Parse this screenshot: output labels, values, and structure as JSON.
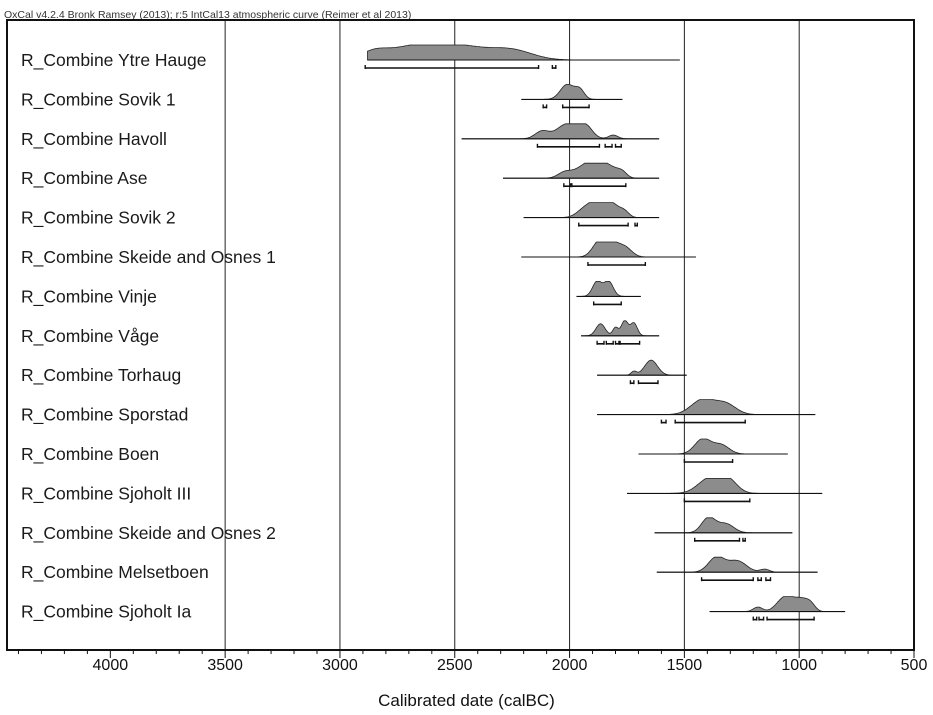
{
  "header": "OxCal v4.2.4 Bronk Ramsey (2013); r:5 IntCal13 atmospheric curve (Reimer et al 2013)",
  "chart_data": {
    "type": "other",
    "subtype": "radiocarbon calibration plot (multi-plot of calibrated date distributions)",
    "xlabel": "Calibrated date (calBC)",
    "xlim": [
      4450,
      500
    ],
    "x_direction": "reversed",
    "xticks": [
      4000,
      3500,
      3000,
      2500,
      2000,
      1500,
      1000,
      500
    ],
    "xtick_labels": [
      "4000",
      "3500",
      "3000",
      "2500",
      "2000",
      "1500",
      "1000",
      "500"
    ],
    "vertical_gridlines": [
      3500,
      3000,
      2500,
      2000,
      1500,
      1000
    ],
    "distribution_color": "#8c8c8c",
    "series": [
      {
        "name": "R_Combine Ytre Hauge",
        "range": [
          2880,
          1520
        ],
        "peaks": [
          [
            2850,
            60,
            0.55
          ],
          [
            2700,
            90,
            0.65
          ],
          [
            2500,
            130,
            1.0
          ],
          [
            2250,
            90,
            0.6
          ]
        ],
        "hpd": [
          [
            2890,
            2135
          ],
          [
            2075,
            2060
          ]
        ]
      },
      {
        "name": "R_Combine Sovik 1",
        "range": [
          2210,
          1770
        ],
        "peaks": [
          [
            2010,
            30,
            1.0
          ],
          [
            1955,
            20,
            0.6
          ]
        ],
        "hpd": [
          [
            2115,
            2100
          ],
          [
            2030,
            1915
          ]
        ]
      },
      {
        "name": "R_Combine Havoll",
        "range": [
          2470,
          1610
        ],
        "peaks": [
          [
            2120,
            30,
            0.5
          ],
          [
            2010,
            45,
            1.0
          ],
          [
            1930,
            30,
            0.8
          ],
          [
            1810,
            20,
            0.25
          ]
        ],
        "hpd": [
          [
            2140,
            1870
          ],
          [
            1845,
            1815
          ],
          [
            1800,
            1775
          ]
        ]
      },
      {
        "name": "R_Combine Ase",
        "range": [
          2290,
          1610
        ],
        "peaks": [
          [
            2020,
            30,
            0.4
          ],
          [
            1935,
            40,
            0.8
          ],
          [
            1880,
            30,
            1.0
          ],
          [
            1820,
            35,
            0.7
          ],
          [
            1770,
            20,
            0.3
          ]
        ],
        "hpd": [
          [
            2025,
            1995
          ],
          [
            1990,
            1755
          ]
        ]
      },
      {
        "name": "R_Combine Sovik 2",
        "range": [
          2200,
          1610
        ],
        "peaks": [
          [
            1930,
            35,
            0.6
          ],
          [
            1870,
            35,
            1.0
          ],
          [
            1810,
            30,
            0.75
          ],
          [
            1760,
            20,
            0.35
          ]
        ],
        "hpd": [
          [
            1960,
            1745
          ],
          [
            1715,
            1705
          ]
        ]
      },
      {
        "name": "R_Combine Skeide and Osnes 1",
        "range": [
          2210,
          1450
        ],
        "peaks": [
          [
            1870,
            30,
            1.0
          ],
          [
            1820,
            30,
            0.9
          ],
          [
            1760,
            30,
            0.65
          ]
        ],
        "hpd": [
          [
            1920,
            1670
          ]
        ]
      },
      {
        "name": "R_Combine Vinje",
        "range": [
          1970,
          1690
        ],
        "peaks": [
          [
            1880,
            20,
            1.0
          ],
          [
            1830,
            20,
            1.0
          ]
        ],
        "hpd": [
          [
            1895,
            1775
          ]
        ]
      },
      {
        "name": "R_Combine Våge",
        "range": [
          1950,
          1610
        ],
        "peaks": [
          [
            1865,
            20,
            0.8
          ],
          [
            1800,
            12,
            0.55
          ],
          [
            1760,
            15,
            1.0
          ],
          [
            1720,
            15,
            0.85
          ]
        ],
        "hpd": [
          [
            1880,
            1850
          ],
          [
            1840,
            1810
          ],
          [
            1800,
            1785
          ],
          [
            1780,
            1695
          ]
        ]
      },
      {
        "name": "R_Combine Torhaug",
        "range": [
          1880,
          1490
        ],
        "peaks": [
          [
            1645,
            28,
            1.0
          ],
          [
            1720,
            12,
            0.25
          ]
        ],
        "hpd": [
          [
            1735,
            1720
          ],
          [
            1700,
            1615
          ]
        ]
      },
      {
        "name": "R_Combine Sporstad",
        "range": [
          1880,
          930
        ],
        "peaks": [
          [
            1420,
            50,
            1.0
          ],
          [
            1320,
            45,
            0.7
          ]
        ],
        "hpd": [
          [
            1600,
            1580
          ],
          [
            1540,
            1235
          ]
        ]
      },
      {
        "name": "R_Combine Boen",
        "range": [
          1700,
          1050
        ],
        "peaks": [
          [
            1420,
            35,
            1.0
          ],
          [
            1340,
            35,
            0.6
          ]
        ],
        "hpd": [
          [
            1500,
            1290
          ]
        ]
      },
      {
        "name": "R_Combine Sjoholt III",
        "range": [
          1750,
          900
        ],
        "peaks": [
          [
            1390,
            50,
            1.0
          ],
          [
            1310,
            40,
            0.85
          ]
        ],
        "hpd": [
          [
            1500,
            1215
          ]
        ]
      },
      {
        "name": "R_Combine Skeide and Osnes 2",
        "range": [
          1630,
          1030
        ],
        "peaks": [
          [
            1395,
            30,
            1.0
          ],
          [
            1320,
            35,
            0.6
          ]
        ],
        "hpd": [
          [
            1455,
            1260
          ],
          [
            1245,
            1235
          ]
        ]
      },
      {
        "name": "R_Combine Melsetboen",
        "range": [
          1620,
          920
        ],
        "peaks": [
          [
            1360,
            35,
            1.0
          ],
          [
            1270,
            40,
            0.75
          ],
          [
            1150,
            20,
            0.2
          ]
        ],
        "hpd": [
          [
            1425,
            1200
          ],
          [
            1180,
            1165
          ],
          [
            1145,
            1125
          ]
        ]
      },
      {
        "name": "R_Combine Sjoholt Ia",
        "range": [
          1390,
          800
        ],
        "peaks": [
          [
            1180,
            20,
            0.3
          ],
          [
            1060,
            35,
            1.0
          ],
          [
            990,
            30,
            0.75
          ],
          [
            950,
            20,
            0.4
          ]
        ],
        "hpd": [
          [
            1200,
            1185
          ],
          [
            1175,
            1155
          ],
          [
            1140,
            935
          ]
        ]
      }
    ]
  }
}
